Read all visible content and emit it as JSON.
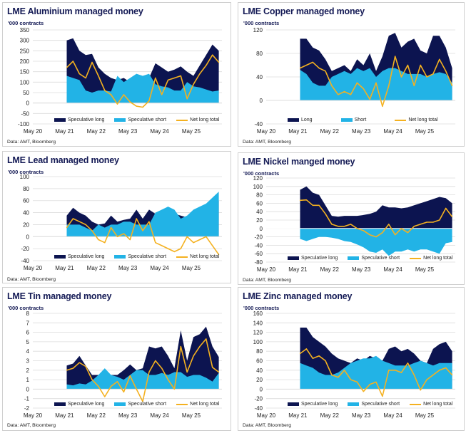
{
  "colors": {
    "long": "#0c1450",
    "short": "#22b3e6",
    "net": "#f4b120",
    "grid": "#dcdcdc"
  },
  "chart_data": [
    {
      "type": "area",
      "title": "LME Aluminium managed money",
      "ylabel": "'000 contracts",
      "source": "Data: AMT, Bloomberg",
      "ylim": [
        -100,
        350
      ],
      "yticks": [
        350,
        300,
        250,
        200,
        150,
        100,
        50,
        0,
        -50,
        -100
      ],
      "xticks": [
        {
          "label": "May 20",
          "x": 2020.33
        },
        {
          "label": "May 21",
          "x": 2021.33
        },
        {
          "label": "May 22",
          "x": 2022.33
        },
        {
          "label": "May 23",
          "x": 2023.33
        },
        {
          "label": "May 24",
          "x": 2024.33
        },
        {
          "label": "May 25",
          "x": 2025.33
        }
      ],
      "xlim": [
        2020.33,
        2026.3
      ],
      "x": [
        2021.4,
        2021.6,
        2021.8,
        2022.0,
        2022.2,
        2022.4,
        2022.6,
        2022.8,
        2023.0,
        2023.2,
        2023.4,
        2023.6,
        2023.8,
        2024.0,
        2024.2,
        2024.4,
        2024.6,
        2024.8,
        2025.0,
        2025.2,
        2025.4,
        2025.6,
        2025.8,
        2026.0,
        2026.2
      ],
      "series": [
        {
          "name": "Speculative long",
          "kind": "long",
          "values": [
            300,
            310,
            250,
            230,
            235,
            170,
            140,
            120,
            110,
            120,
            100,
            120,
            100,
            120,
            190,
            170,
            150,
            160,
            175,
            150,
            130,
            180,
            230,
            280,
            250
          ]
        },
        {
          "name": "Speculative short",
          "kind": "short",
          "values": [
            130,
            120,
            110,
            60,
            50,
            60,
            60,
            55,
            130,
            100,
            120,
            140,
            130,
            140,
            90,
            80,
            75,
            60,
            60,
            100,
            80,
            75,
            65,
            55,
            60
          ]
        },
        {
          "name": "Net long total",
          "kind": "net",
          "values": [
            170,
            200,
            140,
            120,
            195,
            130,
            60,
            40,
            -5,
            40,
            5,
            -15,
            -20,
            10,
            120,
            40,
            110,
            120,
            130,
            20,
            90,
            140,
            180,
            230,
            195
          ]
        }
      ]
    },
    {
      "type": "area",
      "title": "LME Copper managed money",
      "ylabel": "'000 contracts",
      "source": "Data: AMT, Bloomberg",
      "ylim": [
        -40,
        120
      ],
      "yticks": [
        120,
        80,
        40,
        0,
        -40
      ],
      "xticks": [
        {
          "label": "May 20",
          "x": 2020.33
        },
        {
          "label": "May 21",
          "x": 2021.33
        },
        {
          "label": "May 22",
          "x": 2022.33
        },
        {
          "label": "May 23",
          "x": 2023.33
        },
        {
          "label": "May 24",
          "x": 2024.33
        },
        {
          "label": "May 25",
          "x": 2025.33
        }
      ],
      "xlim": [
        2020.33,
        2026.3
      ],
      "x": [
        2021.4,
        2021.6,
        2021.8,
        2022.0,
        2022.2,
        2022.4,
        2022.6,
        2022.8,
        2023.0,
        2023.2,
        2023.4,
        2023.6,
        2023.8,
        2024.0,
        2024.2,
        2024.4,
        2024.6,
        2024.8,
        2025.0,
        2025.2,
        2025.4,
        2025.6,
        2025.8,
        2026.0,
        2026.2
      ],
      "series": [
        {
          "name": "Long",
          "kind": "long",
          "values": [
            105,
            105,
            90,
            85,
            70,
            50,
            55,
            60,
            50,
            70,
            60,
            80,
            50,
            75,
            110,
            115,
            90,
            100,
            105,
            85,
            80,
            110,
            110,
            90,
            55
          ]
        },
        {
          "name": "Short",
          "kind": "short",
          "values": [
            52,
            45,
            30,
            25,
            25,
            40,
            45,
            50,
            45,
            55,
            50,
            55,
            40,
            50,
            55,
            55,
            50,
            45,
            45,
            45,
            40,
            45,
            48,
            45,
            30
          ]
        },
        {
          "name": "Net long total",
          "kind": "net",
          "values": [
            55,
            60,
            65,
            55,
            50,
            25,
            10,
            15,
            10,
            30,
            20,
            2,
            30,
            -10,
            25,
            75,
            40,
            60,
            25,
            60,
            40,
            45,
            70,
            50,
            25
          ]
        }
      ]
    },
    {
      "type": "area",
      "title": "LME Lead managed money",
      "ylabel": "'000 contracts",
      "source": "Data: AMT, Bloomberg",
      "ylim": [
        -40,
        100
      ],
      "yticks": [
        100,
        80,
        60,
        40,
        20,
        0,
        -20,
        -40
      ],
      "xticks": [
        {
          "label": "May 20",
          "x": 2020.33
        },
        {
          "label": "May 21",
          "x": 2021.33
        },
        {
          "label": "May 22",
          "x": 2022.33
        },
        {
          "label": "May 23",
          "x": 2023.33
        },
        {
          "label": "May 24",
          "x": 2024.33
        },
        {
          "label": "May 25",
          "x": 2025.33
        }
      ],
      "xlim": [
        2020.33,
        2026.3
      ],
      "x": [
        2021.4,
        2021.6,
        2021.8,
        2022.0,
        2022.2,
        2022.4,
        2022.6,
        2022.8,
        2023.0,
        2023.2,
        2023.4,
        2023.6,
        2023.8,
        2024.0,
        2024.2,
        2024.4,
        2024.6,
        2024.8,
        2025.0,
        2025.2,
        2025.4,
        2025.6,
        2025.8,
        2026.0,
        2026.2
      ],
      "series": [
        {
          "name": "Speculative long",
          "kind": "long",
          "values": [
            35,
            48,
            40,
            35,
            25,
            20,
            22,
            35,
            25,
            28,
            30,
            45,
            30,
            45,
            38,
            35,
            35,
            38,
            35,
            32,
            40,
            45,
            50,
            55,
            60
          ]
        },
        {
          "name": "Speculative short",
          "kind": "short",
          "values": [
            20,
            20,
            20,
            15,
            10,
            20,
            15,
            20,
            20,
            25,
            25,
            20,
            20,
            20,
            40,
            45,
            50,
            45,
            30,
            35,
            45,
            50,
            55,
            65,
            75
          ]
        },
        {
          "name": "Net long total",
          "kind": "net",
          "values": [
            15,
            30,
            25,
            20,
            10,
            -5,
            -10,
            15,
            0,
            5,
            -5,
            30,
            10,
            25,
            -10,
            -15,
            -20,
            -25,
            -20,
            0,
            -10,
            -5,
            0,
            -15,
            -30
          ]
        }
      ]
    },
    {
      "type": "area",
      "title": "LME Nickel manged money",
      "ylabel": "'000 contracts",
      "source": "Data: AMT, Bloomberg",
      "ylim": [
        -80,
        120
      ],
      "yticks": [
        120,
        100,
        80,
        60,
        40,
        20,
        0,
        -20,
        -40,
        -60,
        -80
      ],
      "xticks": [
        {
          "label": "May 20",
          "x": 2020.33
        },
        {
          "label": "May 21",
          "x": 2021.33
        },
        {
          "label": "May 22",
          "x": 2022.33
        },
        {
          "label": "May 23",
          "x": 2023.33
        },
        {
          "label": "May 24",
          "x": 2024.33
        },
        {
          "label": "May 25",
          "x": 2025.33
        }
      ],
      "xlim": [
        2020.33,
        2026.3
      ],
      "x": [
        2021.4,
        2021.6,
        2021.8,
        2022.0,
        2022.2,
        2022.4,
        2022.6,
        2022.8,
        2023.0,
        2023.2,
        2023.4,
        2023.6,
        2023.8,
        2024.0,
        2024.2,
        2024.4,
        2024.6,
        2024.8,
        2025.0,
        2025.2,
        2025.4,
        2025.6,
        2025.8,
        2026.0,
        2026.2
      ],
      "series": [
        {
          "name": "Speculative long",
          "kind": "long",
          "values": [
            92,
            100,
            85,
            80,
            55,
            30,
            28,
            30,
            30,
            30,
            32,
            35,
            40,
            55,
            50,
            50,
            48,
            50,
            55,
            60,
            65,
            70,
            75,
            72,
            60
          ]
        },
        {
          "name": "Speculative short",
          "kind": "short",
          "values": [
            -25,
            -30,
            -25,
            -20,
            -20,
            -22,
            -25,
            -30,
            -32,
            -38,
            -45,
            -55,
            -58,
            -50,
            -65,
            -55,
            -55,
            -50,
            -55,
            -50,
            -50,
            -55,
            -60,
            -35,
            -32
          ]
        },
        {
          "name": "Net long total",
          "kind": "net",
          "values": [
            67,
            68,
            55,
            55,
            35,
            10,
            5,
            5,
            10,
            0,
            -5,
            -15,
            -20,
            -10,
            10,
            -15,
            0,
            -10,
            5,
            10,
            15,
            15,
            20,
            48,
            28
          ]
        }
      ]
    },
    {
      "type": "area",
      "title": "LME Tin managed money",
      "ylabel": "'000 contracts",
      "source": "Data: AMT, Bloomberg",
      "ylim": [
        -2,
        8
      ],
      "yticks": [
        8,
        7,
        6,
        5,
        4,
        3,
        2,
        1,
        0,
        -1,
        -2
      ],
      "xticks": [
        {
          "label": "May 20",
          "x": 2020.33
        },
        {
          "label": "May 21",
          "x": 2021.33
        },
        {
          "label": "May 22",
          "x": 2022.33
        },
        {
          "label": "May 23",
          "x": 2023.33
        },
        {
          "label": "May 24",
          "x": 2024.33
        },
        {
          "label": "May 25",
          "x": 2025.33
        }
      ],
      "xlim": [
        2020.33,
        2026.3
      ],
      "x": [
        2021.4,
        2021.6,
        2021.8,
        2022.0,
        2022.2,
        2022.4,
        2022.6,
        2022.8,
        2023.0,
        2023.2,
        2023.4,
        2023.6,
        2023.8,
        2024.0,
        2024.2,
        2024.4,
        2024.6,
        2024.8,
        2025.0,
        2025.2,
        2025.4,
        2025.6,
        2025.8,
        2026.0,
        2026.2
      ],
      "series": [
        {
          "name": "Speculative long",
          "kind": "long",
          "values": [
            2.5,
            2.7,
            3.5,
            2.5,
            1.5,
            1.5,
            1.7,
            1.5,
            1.5,
            2.0,
            2.6,
            2.0,
            2.2,
            4.5,
            4.3,
            4.5,
            3.5,
            2.2,
            6.2,
            3.0,
            5.5,
            5.8,
            6.6,
            4.5,
            3.4
          ]
        },
        {
          "name": "Speculative short",
          "kind": "short",
          "values": [
            0.5,
            0.4,
            0.6,
            0.5,
            0.9,
            1.5,
            2.2,
            1.5,
            1.3,
            1.0,
            1.5,
            2.0,
            2.0,
            1.5,
            1.5,
            1.7,
            1.5,
            1.8,
            1.8,
            1.3,
            1.5,
            1.5,
            1.2,
            0.8,
            1.7
          ]
        },
        {
          "name": "Net long total",
          "kind": "net",
          "values": [
            2.0,
            2.2,
            2.8,
            2.4,
            1.0,
            0.3,
            -0.8,
            0.3,
            0.8,
            -0.3,
            1.4,
            0.0,
            -1.3,
            1.8,
            3.0,
            2.2,
            1.0,
            0.0,
            4.5,
            1.8,
            3.5,
            4.5,
            5.3,
            2.3,
            1.8
          ]
        }
      ]
    },
    {
      "type": "area",
      "title": "LME Zinc managed money",
      "ylabel": "'000 contracts",
      "source": "Data: AMT, Bloomberg",
      "ylim": [
        -40,
        160
      ],
      "yticks": [
        160,
        140,
        120,
        100,
        80,
        60,
        40,
        20,
        0,
        -20,
        -40
      ],
      "xticks": [
        {
          "label": "May 20",
          "x": 2020.33
        },
        {
          "label": "May 21",
          "x": 2021.33
        },
        {
          "label": "May 22",
          "x": 2022.33
        },
        {
          "label": "May 23",
          "x": 2023.33
        },
        {
          "label": "May 24",
          "x": 2024.33
        },
        {
          "label": "May 25",
          "x": 2025.33
        }
      ],
      "xlim": [
        2020.33,
        2026.3
      ],
      "x": [
        2021.4,
        2021.6,
        2021.8,
        2022.0,
        2022.2,
        2022.4,
        2022.6,
        2022.8,
        2023.0,
        2023.2,
        2023.4,
        2023.6,
        2023.8,
        2024.0,
        2024.2,
        2024.4,
        2024.6,
        2024.8,
        2025.0,
        2025.2,
        2025.4,
        2025.6,
        2025.8,
        2026.0,
        2026.2
      ],
      "series": [
        {
          "name": "Speculative long",
          "kind": "long",
          "values": [
            130,
            130,
            110,
            100,
            90,
            75,
            65,
            60,
            55,
            65,
            60,
            70,
            65,
            60,
            85,
            90,
            80,
            85,
            75,
            60,
            55,
            85,
            95,
            100,
            80
          ]
        },
        {
          "name": "Speculative short",
          "kind": "short",
          "values": [
            55,
            50,
            45,
            35,
            30,
            30,
            35,
            45,
            55,
            60,
            65,
            65,
            70,
            60,
            55,
            50,
            50,
            50,
            55,
            60,
            55,
            50,
            55,
            55,
            55
          ]
        },
        {
          "name": "Net long total",
          "kind": "net",
          "values": [
            75,
            85,
            65,
            70,
            60,
            30,
            25,
            40,
            20,
            15,
            -5,
            10,
            15,
            -15,
            40,
            40,
            35,
            55,
            30,
            -2,
            20,
            30,
            40,
            45,
            30
          ]
        }
      ]
    }
  ]
}
